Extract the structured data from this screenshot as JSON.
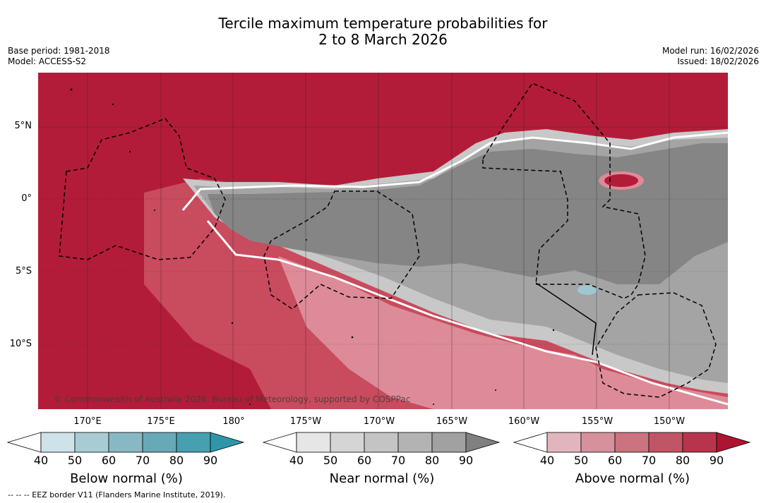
{
  "header": {
    "title_line1": "Tercile maximum temperature probabilities for",
    "title_line2": "2 to 8 March 2026",
    "base_period": "Base period: 1981-2018",
    "model": "Model: ACCESS-S2",
    "model_run": "Model run: 16/02/2026",
    "issued": "Issued: 18/02/2026"
  },
  "map": {
    "lat_labels": [
      "5°N",
      "0°",
      "5°S",
      "10°S"
    ],
    "lon_labels": [
      "170°E",
      "175°E",
      "180°",
      "175°W",
      "170°W",
      "165°W",
      "160°W",
      "155°W",
      "150°W"
    ],
    "copyright": "© Commonwealth of Australia 2026, Bureau of Meteorology, supported by COSPPac",
    "colors": {
      "above_dark": "#b31c38",
      "above_mid": "#c94b5e",
      "above_light": "#dd8b98",
      "near_dark": "#858585",
      "near_mid": "#a4a4a4",
      "near_light": "#c8c8c8",
      "below": "#9fc7d1"
    }
  },
  "colorbars": {
    "ticks": [
      "40",
      "50",
      "60",
      "70",
      "80",
      "90"
    ],
    "below": {
      "title": "Below normal (%)",
      "colors": [
        "#ffffff",
        "#cde3e9",
        "#a9ccd4",
        "#88b8c4",
        "#68a9b8",
        "#47a0b0",
        "#2f96aa"
      ]
    },
    "near": {
      "title": "Near normal (%)",
      "colors": [
        "#ffffff",
        "#e6e6e6",
        "#d5d5d5",
        "#c4c4c4",
        "#b3b3b3",
        "#a1a1a1",
        "#808080"
      ]
    },
    "above": {
      "title": "Above normal (%)",
      "colors": [
        "#ffffff",
        "#e2b5bd",
        "#d6919c",
        "#cb737f",
        "#c05566",
        "#b8344d",
        "#ad1432"
      ]
    }
  },
  "footer": {
    "legend_text": "--  --  -- EEZ border V11 (Flanders Marine Institute, 2019)."
  }
}
